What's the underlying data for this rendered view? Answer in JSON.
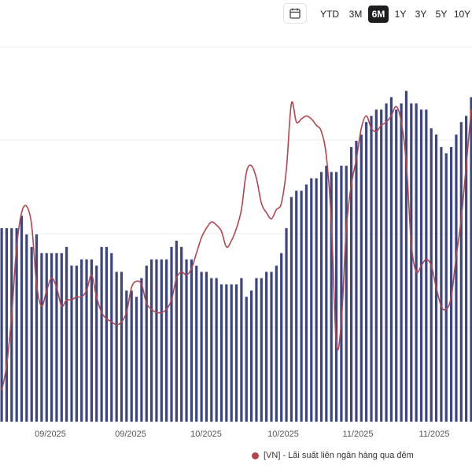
{
  "toolbar": {
    "calendar_icon": "calendar-icon",
    "ranges": [
      "YTD",
      "3M",
      "6M",
      "1Y",
      "3Y",
      "5Y",
      "10Y"
    ],
    "active_range": "6M"
  },
  "colors": {
    "bars": "#3b4582",
    "line": "#b5454c",
    "grid": "#eeeeee"
  },
  "legend": {
    "label": "[VN] - Lãi suất liên ngân hàng qua đêm"
  },
  "chart_data": {
    "type": "bar",
    "xlabel": "",
    "ylabel": "",
    "x_tick_labels": [
      "09/2025",
      "09/2025",
      "10/2025",
      "10/2025",
      "11/2025",
      "11/2025"
    ],
    "grid": "horizontal",
    "legend_position": "bottom-right",
    "series": [
      {
        "name": "",
        "type": "bar",
        "values": [
          31,
          31,
          31,
          31,
          33,
          30,
          28,
          30,
          27,
          27,
          27,
          27,
          27,
          28,
          25,
          25,
          26,
          26,
          26,
          25,
          28,
          28,
          27,
          24,
          24,
          21,
          21,
          20,
          23,
          25,
          26,
          26,
          26,
          26,
          28,
          29,
          28,
          26,
          26,
          25,
          24,
          24,
          23,
          23,
          22,
          22,
          22,
          22,
          23,
          20,
          21,
          23,
          23,
          24,
          24,
          25,
          27,
          31,
          36,
          37,
          37,
          38,
          39,
          39,
          40,
          41,
          40,
          40,
          41,
          41,
          44,
          45,
          46,
          48,
          49,
          50,
          50,
          51,
          52,
          50,
          51,
          53,
          51,
          51,
          50,
          50,
          47,
          46,
          44,
          43,
          44,
          46,
          48,
          49,
          52
        ]
      },
      {
        "name": "[VN] - Lãi suất liên ngân hàng qua đêm",
        "type": "line",
        "values": [
          [
            0,
            1.0
          ],
          [
            1,
            1.8
          ],
          [
            2,
            3.4
          ],
          [
            3,
            5.6
          ],
          [
            4,
            6.7
          ],
          [
            5,
            6.9
          ],
          [
            6,
            6.3
          ],
          [
            7,
            4.4
          ],
          [
            8,
            3.7
          ],
          [
            9,
            4.2
          ],
          [
            10,
            4.6
          ],
          [
            11,
            4.3
          ],
          [
            12,
            3.7
          ],
          [
            13,
            3.9
          ],
          [
            14,
            3.9
          ],
          [
            15,
            4.0
          ],
          [
            16,
            4.0
          ],
          [
            17,
            4.2
          ],
          [
            18,
            4.7
          ],
          [
            19,
            4.0
          ],
          [
            20,
            3.5
          ],
          [
            21,
            3.3
          ],
          [
            22,
            3.2
          ],
          [
            23,
            3.1
          ],
          [
            24,
            3.2
          ],
          [
            25,
            3.5
          ],
          [
            26,
            4.3
          ],
          [
            27,
            4.5
          ],
          [
            28,
            4.4
          ],
          [
            29,
            3.8
          ],
          [
            30,
            3.6
          ],
          [
            31,
            3.5
          ],
          [
            32,
            3.5
          ],
          [
            33,
            3.6
          ],
          [
            34,
            3.9
          ],
          [
            35,
            4.6
          ],
          [
            36,
            4.8
          ],
          [
            37,
            4.7
          ],
          [
            38,
            4.9
          ],
          [
            39,
            5.4
          ],
          [
            40,
            5.9
          ],
          [
            41,
            6.2
          ],
          [
            42,
            6.4
          ],
          [
            43,
            6.3
          ],
          [
            44,
            6.1
          ],
          [
            45,
            5.6
          ],
          [
            46,
            5.8
          ],
          [
            47,
            6.2
          ],
          [
            48,
            6.8
          ],
          [
            49,
            8.0
          ],
          [
            50,
            8.2
          ],
          [
            51,
            7.8
          ],
          [
            52,
            7.0
          ],
          [
            53,
            6.7
          ],
          [
            54,
            6.5
          ],
          [
            55,
            6.8
          ],
          [
            56,
            7.0
          ],
          [
            57,
            8.1
          ],
          [
            58,
            10.2
          ],
          [
            59,
            9.6
          ],
          [
            60,
            9.7
          ],
          [
            61,
            9.8
          ],
          [
            62,
            9.7
          ],
          [
            63,
            9.5
          ],
          [
            64,
            9.3
          ],
          [
            65,
            8.5
          ],
          [
            66,
            6.4
          ],
          [
            67,
            2.5
          ],
          [
            68,
            3.2
          ],
          [
            69,
            6.2
          ],
          [
            70,
            7.6
          ],
          [
            71,
            8.4
          ],
          [
            72,
            9.4
          ],
          [
            73,
            9.8
          ],
          [
            74,
            9.4
          ],
          [
            75,
            9.3
          ],
          [
            76,
            9.5
          ],
          [
            77,
            9.6
          ],
          [
            78,
            9.8
          ],
          [
            79,
            10.1
          ],
          [
            80,
            9.6
          ],
          [
            81,
            8.3
          ],
          [
            82,
            5.7
          ],
          [
            83,
            4.8
          ],
          [
            84,
            5.0
          ],
          [
            85,
            5.2
          ],
          [
            86,
            5.0
          ],
          [
            87,
            4.3
          ],
          [
            88,
            3.7
          ],
          [
            89,
            3.6
          ],
          [
            90,
            4.0
          ],
          [
            91,
            5.3
          ],
          [
            92,
            6.5
          ],
          [
            93,
            8.2
          ],
          [
            94,
            10.0
          ]
        ]
      }
    ]
  }
}
